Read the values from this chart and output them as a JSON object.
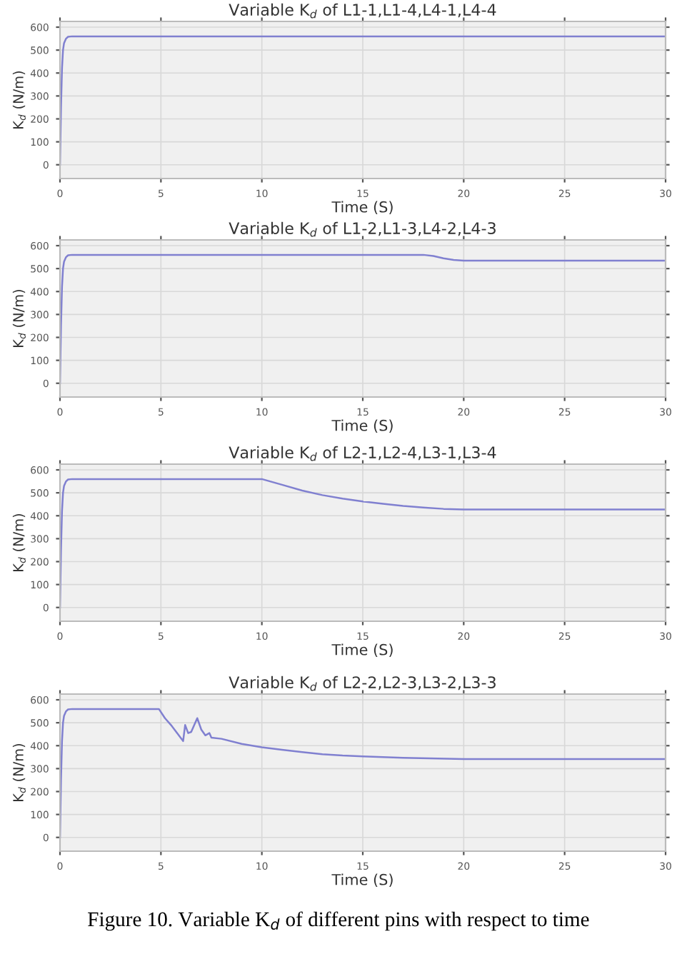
{
  "chart_data": [
    {
      "type": "line",
      "title": "Variable K$_{d}$ of L1-1,L1-4,L4-1,L4-4",
      "xlabel": "Time (S)",
      "ylabel": "K$_{d}$ (N/m)",
      "xlim": [
        0,
        30
      ],
      "ylim": [
        -60,
        625
      ],
      "xticks": [
        0,
        5,
        10,
        15,
        20,
        25,
        30
      ],
      "yticks": [
        0,
        100,
        200,
        300,
        400,
        500,
        600
      ],
      "grid": true,
      "series": [
        {
          "color": "#8080d0",
          "x": [
            0,
            0.05,
            0.1,
            0.15,
            0.2,
            0.3,
            0.4,
            0.6,
            30
          ],
          "values": [
            0,
            250,
            420,
            500,
            530,
            550,
            558,
            560,
            560
          ]
        }
      ]
    },
    {
      "type": "line",
      "title": "Variable K$_{d}$ of L1-2,L1-3,L4-2,L4-3",
      "xlabel": "Time (S)",
      "ylabel": "K$_{d}$ (N/m)",
      "xlim": [
        0,
        30
      ],
      "ylim": [
        -60,
        625
      ],
      "xticks": [
        0,
        5,
        10,
        15,
        20,
        25,
        30
      ],
      "yticks": [
        0,
        100,
        200,
        300,
        400,
        500,
        600
      ],
      "grid": true,
      "series": [
        {
          "color": "#8080d0",
          "x": [
            0,
            0.05,
            0.1,
            0.15,
            0.2,
            0.3,
            0.4,
            0.6,
            18,
            18.5,
            19,
            19.5,
            20,
            30
          ],
          "values": [
            0,
            250,
            420,
            500,
            530,
            550,
            558,
            560,
            560,
            555,
            545,
            538,
            535,
            535
          ]
        }
      ]
    },
    {
      "type": "line",
      "title": "Variable K$_{d}$ of L2-1,L2-4,L3-1,L3-4",
      "xlabel": "Time (S)",
      "ylabel": "K$_{d}$ (N/m)",
      "xlim": [
        0,
        30
      ],
      "ylim": [
        -60,
        625
      ],
      "xticks": [
        0,
        5,
        10,
        15,
        20,
        25,
        30
      ],
      "yticks": [
        0,
        100,
        200,
        300,
        400,
        500,
        600
      ],
      "grid": true,
      "series": [
        {
          "color": "#8080d0",
          "x": [
            0,
            0.05,
            0.1,
            0.15,
            0.2,
            0.3,
            0.4,
            0.6,
            10,
            11,
            12,
            13,
            14,
            15,
            16,
            17,
            18,
            19,
            20,
            30
          ],
          "values": [
            0,
            250,
            420,
            500,
            530,
            550,
            558,
            560,
            560,
            535,
            510,
            490,
            475,
            462,
            452,
            443,
            436,
            430,
            427,
            427
          ]
        }
      ]
    },
    {
      "type": "line",
      "title": "Variable K$_{d}$ of L2-2,L2-3,L3-2,L3-3",
      "xlabel": "Time (S)",
      "ylabel": "K$_{d}$ (N/m)",
      "xlim": [
        0,
        30
      ],
      "ylim": [
        -60,
        625
      ],
      "xticks": [
        0,
        5,
        10,
        15,
        20,
        25,
        30
      ],
      "yticks": [
        0,
        100,
        200,
        300,
        400,
        500,
        600
      ],
      "grid": true,
      "annotations": [
        "Figure 10. Variable K$_{d}$ of different pins with respect to time"
      ],
      "series": [
        {
          "color": "#8080d0",
          "x": [
            0,
            0.05,
            0.1,
            0.15,
            0.2,
            0.3,
            0.4,
            0.6,
            4.9,
            5.2,
            5.5,
            5.8,
            6.1,
            6.2,
            6.35,
            6.5,
            6.8,
            7.0,
            7.2,
            7.4,
            7.5,
            8,
            9,
            10,
            11,
            12,
            13,
            14,
            15,
            17,
            20,
            30
          ],
          "values": [
            0,
            250,
            420,
            500,
            530,
            550,
            558,
            560,
            560,
            520,
            490,
            455,
            420,
            490,
            455,
            460,
            520,
            470,
            445,
            455,
            435,
            430,
            408,
            393,
            382,
            372,
            363,
            357,
            353,
            347,
            342,
            342
          ]
        }
      ]
    }
  ]
}
